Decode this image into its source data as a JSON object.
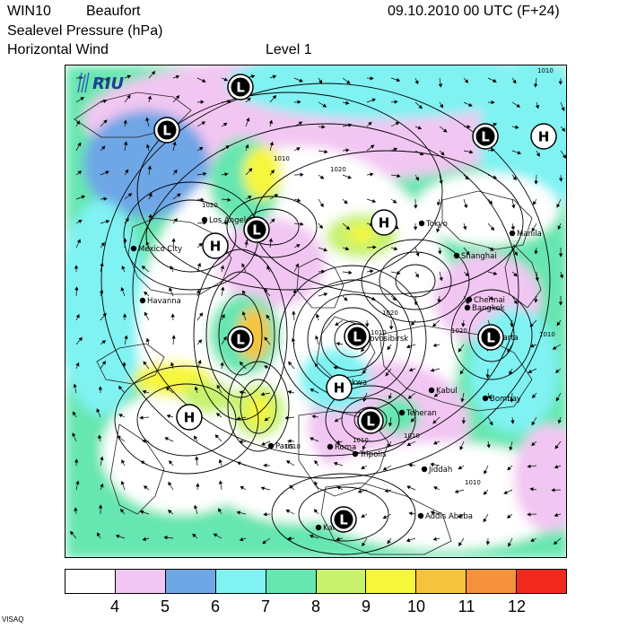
{
  "header": {
    "model": "WIN10",
    "scale": "Beaufort",
    "field1": "Sealevel Pressure (hPa)",
    "field2": "Horizontal Wind",
    "level": "Level  1",
    "datetime": "09.10.2010 00 UTC (F+24)"
  },
  "logo_text": "RIU",
  "footer": "VISAQ",
  "legend": {
    "colors": [
      "#ffffff",
      "#f2c6f2",
      "#6ea6e6",
      "#80f2f2",
      "#66e6b0",
      "#c8f26e",
      "#f6f63c",
      "#f6c43c",
      "#f6923c",
      "#f22a1e"
    ],
    "labels": [
      "4",
      "5",
      "6",
      "7",
      "8",
      "9",
      "10",
      "11",
      "12"
    ]
  },
  "pressure_centers": [
    {
      "type": "L"
    },
    {
      "type": "L"
    },
    {
      "type": "L"
    },
    {
      "type": "H"
    },
    {
      "type": "L"
    },
    {
      "type": "H"
    },
    {
      "type": "H"
    },
    {
      "type": "L"
    },
    {
      "type": "L"
    },
    {
      "type": "L"
    },
    {
      "type": "H"
    },
    {
      "type": "H"
    },
    {
      "type": "L"
    },
    {
      "type": "L"
    }
  ],
  "cities": [
    "Los Angeles",
    "Mexico City",
    "Havanna",
    "Tokyo",
    "Manila",
    "Shanghai",
    "Chennai",
    "Bangkok",
    "Jakarta",
    "Novosibirsk",
    "Moskwa",
    "Kabul",
    "Teheran",
    "Bombay",
    "Jiddah",
    "Addis Abeba",
    "Tripolis",
    "Kano",
    "Paris",
    "Roma"
  ],
  "isobar_labels": [
    "1010",
    "1010",
    "1020",
    "1020",
    "1000",
    "1020",
    "1010",
    "1020",
    "1010",
    "1010",
    "1010",
    "1010",
    "1010"
  ]
}
